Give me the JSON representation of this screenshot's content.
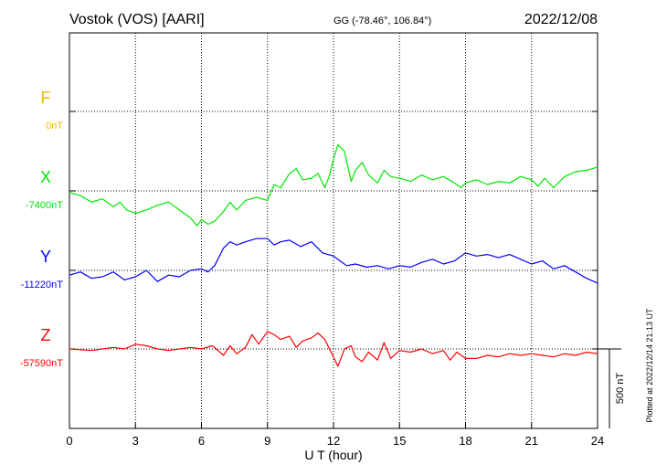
{
  "header": {
    "station": "Vostok (VOS)  [AARI]",
    "coords": "GG (-78.46°, 106.84°)",
    "date": "2022/12/08"
  },
  "footer": {
    "xlabel": "U T (hour)",
    "plotted": "Plotted at 2022/12/14 21:13 UT"
  },
  "scale_bar": {
    "label": "500 nT",
    "value_nT": 500
  },
  "colors": {
    "F": "#f5b800",
    "X": "#00e600",
    "Y": "#0000ff",
    "Z": "#ff0000",
    "axis": "#000000"
  },
  "chart_data": {
    "type": "line",
    "title": "Vostok (VOS)  [AARI]",
    "xlabel": "U T (hour)",
    "xlim": [
      0,
      24
    ],
    "xticks": [
      0,
      3,
      6,
      9,
      12,
      15,
      18,
      21,
      24
    ],
    "xtick_labels": [
      "0",
      "3",
      "6",
      "9",
      "12",
      "15",
      "18",
      "21",
      "24"
    ],
    "grid": true,
    "units": "nT",
    "scale_bar_nT": 500,
    "series": [
      {
        "name": "F",
        "baseline_label": "0nT",
        "baseline_nT": 0,
        "x": [],
        "y": []
      },
      {
        "name": "X",
        "baseline_label": "-7400nT",
        "baseline_nT": -7400,
        "x": [
          0,
          0.5,
          1,
          1.5,
          2,
          2.3,
          2.6,
          3,
          3.5,
          4,
          4.5,
          5,
          5.5,
          5.8,
          6,
          6.3,
          6.6,
          7,
          7.3,
          7.6,
          8,
          8.5,
          9,
          9.3,
          9.6,
          10,
          10.3,
          10.6,
          11,
          11.3,
          11.6,
          11.8,
          12,
          12.2,
          12.5,
          12.8,
          13,
          13.3,
          13.6,
          14,
          14.3,
          14.6,
          15,
          15.5,
          16,
          16.5,
          17,
          17.5,
          17.8,
          18,
          18.5,
          19,
          19.5,
          20,
          20.5,
          21,
          21.3,
          21.6,
          22,
          22.5,
          23,
          23.5,
          24
        ],
        "y": [
          -7410,
          -7430,
          -7470,
          -7450,
          -7500,
          -7470,
          -7520,
          -7540,
          -7520,
          -7490,
          -7470,
          -7520,
          -7570,
          -7620,
          -7580,
          -7610,
          -7590,
          -7530,
          -7470,
          -7520,
          -7460,
          -7440,
          -7460,
          -7360,
          -7380,
          -7290,
          -7260,
          -7330,
          -7320,
          -7290,
          -7380,
          -7310,
          -7200,
          -7110,
          -7150,
          -7340,
          -7270,
          -7220,
          -7300,
          -7350,
          -7270,
          -7310,
          -7320,
          -7340,
          -7300,
          -7330,
          -7310,
          -7350,
          -7380,
          -7350,
          -7330,
          -7360,
          -7340,
          -7350,
          -7310,
          -7330,
          -7370,
          -7320,
          -7380,
          -7310,
          -7280,
          -7270,
          -7250
        ]
      },
      {
        "name": "Y",
        "baseline_label": "-11220nT",
        "baseline_nT": -11220,
        "x": [
          0,
          0.5,
          1,
          1.5,
          2,
          2.5,
          3,
          3.5,
          4,
          4.5,
          5,
          5.5,
          6,
          6.3,
          6.6,
          7,
          7.3,
          7.6,
          8,
          8.5,
          9,
          9.3,
          9.6,
          10,
          10.5,
          11,
          11.5,
          12,
          12.3,
          12.6,
          13,
          13.5,
          14,
          14.5,
          15,
          15.5,
          16,
          16.5,
          17,
          17.5,
          18,
          18.5,
          19,
          19.5,
          20,
          20.5,
          21,
          21.5,
          22,
          22.5,
          23,
          23.5,
          24
        ],
        "y": [
          -11250,
          -11230,
          -11270,
          -11260,
          -11230,
          -11280,
          -11260,
          -11220,
          -11290,
          -11250,
          -11260,
          -11220,
          -11210,
          -11230,
          -11190,
          -11080,
          -11040,
          -11060,
          -11040,
          -11020,
          -11020,
          -11060,
          -11040,
          -11030,
          -11070,
          -11040,
          -11110,
          -11130,
          -11160,
          -11190,
          -11180,
          -11200,
          -11190,
          -11210,
          -11190,
          -11200,
          -11170,
          -11150,
          -11180,
          -11160,
          -11110,
          -11130,
          -11120,
          -11140,
          -11120,
          -11150,
          -11180,
          -11160,
          -11210,
          -11190,
          -11230,
          -11270,
          -11300
        ]
      },
      {
        "name": "Z",
        "baseline_label": "-57590nT",
        "baseline_nT": -57590,
        "x": [
          0,
          1,
          2,
          2.5,
          3,
          3.5,
          4,
          4.5,
          5,
          5.5,
          6,
          6.5,
          7,
          7.3,
          7.6,
          8,
          8.3,
          8.6,
          9,
          9.3,
          9.6,
          10,
          10.3,
          10.6,
          11,
          11.3,
          11.6,
          12,
          12.2,
          12.5,
          12.8,
          13,
          13.3,
          13.6,
          14,
          14.3,
          14.6,
          15,
          15.5,
          16,
          16.5,
          17,
          17.3,
          17.6,
          18,
          18.5,
          19,
          19.5,
          20,
          20.5,
          21,
          21.5,
          22,
          22.5,
          23,
          23.5,
          24
        ],
        "y": [
          -57590,
          -57600,
          -57580,
          -57590,
          -57560,
          -57570,
          -57590,
          -57600,
          -57590,
          -57580,
          -57590,
          -57570,
          -57630,
          -57570,
          -57620,
          -57580,
          -57500,
          -57560,
          -57480,
          -57500,
          -57530,
          -57510,
          -57580,
          -57540,
          -57520,
          -57490,
          -57530,
          -57640,
          -57700,
          -57590,
          -57570,
          -57640,
          -57670,
          -57610,
          -57660,
          -57550,
          -57650,
          -57600,
          -57610,
          -57590,
          -57620,
          -57600,
          -57660,
          -57610,
          -57650,
          -57650,
          -57630,
          -57640,
          -57620,
          -57630,
          -57620,
          -57630,
          -57640,
          -57620,
          -57630,
          -57610,
          -57620
        ]
      }
    ]
  }
}
